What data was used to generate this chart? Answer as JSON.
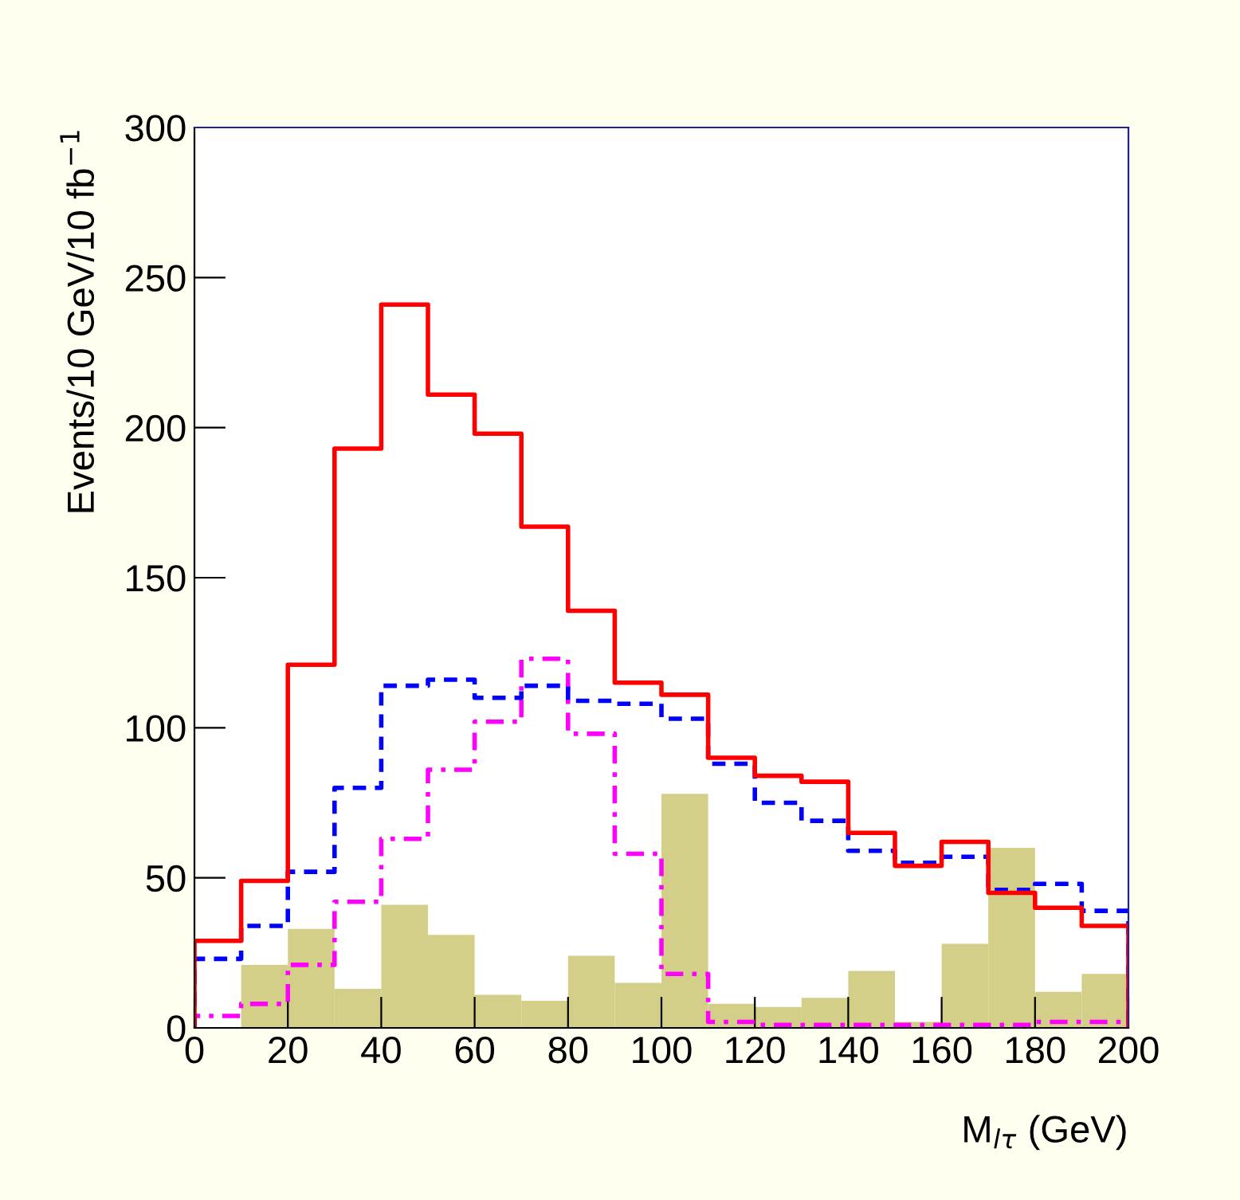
{
  "chart_data": {
    "type": "step",
    "xlabel": "M$_{lτ}$ (GeV)",
    "ylabel": "Events/10 GeV/10 fb$^{−1}$",
    "series": [
      {
        "type": "bar",
        "color": "#d4cf88",
        "x": [
          5,
          15,
          25,
          35,
          45,
          55,
          65,
          75,
          85,
          95,
          105,
          115,
          125,
          135,
          145,
          155,
          165,
          175,
          185,
          195
        ],
        "values": [
          0,
          21,
          33,
          13,
          41,
          31,
          11,
          9,
          24,
          15,
          78,
          8,
          7,
          10,
          19,
          2,
          28,
          60,
          12,
          18
        ]
      },
      {
        "color": "#ff00ff",
        "line_style": "dashdot",
        "x": [
          0,
          0,
          10,
          20,
          30,
          40,
          50,
          60,
          70,
          80,
          90,
          100,
          110,
          120,
          130,
          140,
          150,
          160,
          170,
          180,
          190,
          200,
          200
        ],
        "values": [
          0,
          4,
          8,
          21,
          42,
          63,
          86,
          102,
          123,
          98,
          58,
          18,
          2,
          1,
          1,
          1,
          1,
          1,
          1,
          2,
          2,
          2,
          0
        ]
      },
      {
        "color": "#0000ff",
        "line_style": "dashed",
        "x": [
          0,
          0,
          10,
          20,
          30,
          40,
          50,
          60,
          70,
          80,
          90,
          100,
          110,
          120,
          130,
          140,
          150,
          160,
          170,
          180,
          190,
          200,
          200
        ],
        "values": [
          0,
          23,
          34,
          52,
          80,
          114,
          116,
          110,
          114,
          109,
          108,
          103,
          88,
          75,
          69,
          59,
          55,
          57,
          46,
          48,
          39,
          39,
          0
        ]
      },
      {
        "color": "#ff0000",
        "line_style": "solid",
        "x": [
          0,
          0,
          10,
          20,
          30,
          40,
          50,
          60,
          70,
          80,
          90,
          100,
          110,
          120,
          130,
          140,
          150,
          160,
          170,
          180,
          190,
          200,
          200
        ],
        "values": [
          0,
          29,
          49,
          121,
          193,
          241,
          211,
          198,
          167,
          139,
          115,
          111,
          90,
          84,
          82,
          65,
          54,
          62,
          45,
          40,
          34,
          34,
          0
        ]
      }
    ],
    "xlim": [
      0,
      200
    ],
    "ylim": [
      0,
      300
    ],
    "xticks": [
      0,
      20,
      40,
      60,
      80,
      100,
      120,
      140,
      160,
      180,
      200
    ],
    "yticks": [
      0,
      50,
      100,
      150,
      200,
      250,
      300
    ],
    "grid": false,
    "legend": false
  }
}
